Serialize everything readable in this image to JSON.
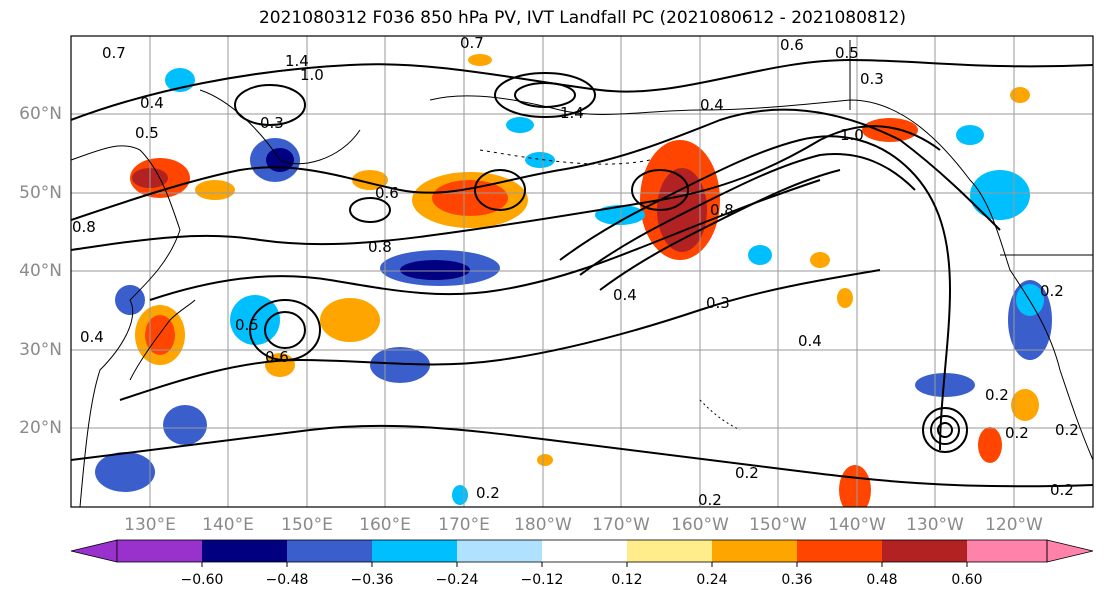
{
  "title": "2021080312 F036 850 hPa PV, IVT Landfall PC (2021080612 - 2021080812)",
  "latitude_labels": [
    "60°N",
    "50°N",
    "40°N",
    "30°N",
    "20°N"
  ],
  "longitude_labels": [
    "130°E",
    "140°E",
    "150°E",
    "160°E",
    "170°E",
    "180°W",
    "170°W",
    "160°W",
    "150°W",
    "140°W",
    "130°W",
    "120°W"
  ],
  "colorbar": {
    "colors": [
      "#9932cc",
      "#000080",
      "#3a5fcd",
      "#00bfff",
      "#b0e2ff",
      "#ffffff",
      "#ffec8b",
      "#ffa500",
      "#ff4500",
      "#b22222",
      "#ff82ab"
    ],
    "tick_labels": [
      "−0.60",
      "−0.48",
      "−0.36",
      "−0.24",
      "−0.12",
      "0.12",
      "0.24",
      "0.36",
      "0.48",
      "0.60"
    ]
  },
  "contour_labels": [
    "0.7",
    "1.4",
    "1.0",
    "0.8",
    "0.7",
    "0.6",
    "0.5",
    "0.3",
    "0.4",
    "0.3",
    "0.5",
    "1.0",
    "1.4",
    "0.4",
    "0.6",
    "0.8",
    "0.8",
    "0.4",
    "0.3",
    "0.4",
    "0.2",
    "0.6",
    "0.4",
    "0.5",
    "0.2",
    "0.2",
    "0.2",
    "0.2",
    "0.2",
    "0.2",
    "0.2"
  ]
}
